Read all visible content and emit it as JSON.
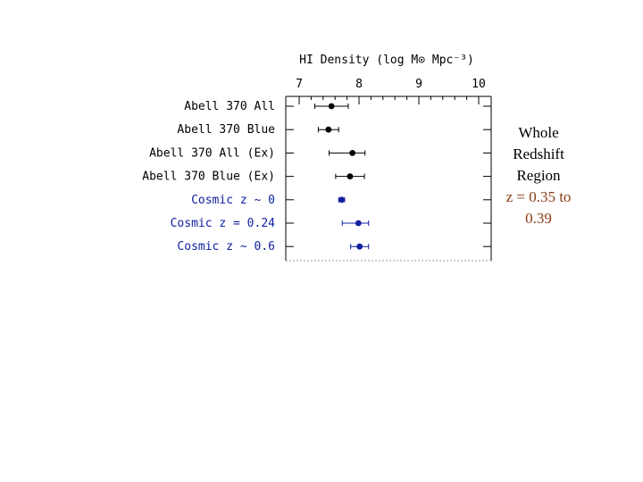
{
  "chart_data": {
    "type": "scatter",
    "title": "",
    "xlabel": "HI Density (log M⊙ Mpc⁻³)",
    "ylabel": "",
    "xlim": [
      7,
      10
    ],
    "xticks": [
      "7",
      "8",
      "9",
      "10"
    ],
    "grid": false,
    "categories": [
      "Abell 370 All",
      "Abell 370 Blue",
      "Abell 370 All (Ex)",
      "Abell 370 Blue (Ex)",
      "Cosmic z ~ 0",
      "Cosmic z = 0.24",
      "Cosmic z ~ 0.6"
    ],
    "values": [
      7.54,
      7.49,
      7.89,
      7.85,
      7.71,
      7.99,
      8.01
    ],
    "err_low": [
      0.28,
      0.17,
      0.39,
      0.24,
      0.05,
      0.27,
      0.15
    ],
    "err_high": [
      0.28,
      0.17,
      0.21,
      0.24,
      0.05,
      0.17,
      0.15
    ],
    "colors": [
      "#000000",
      "#000000",
      "#000000",
      "#000000",
      "#1020a0",
      "#1020a0",
      "#1020a0"
    ]
  },
  "side_note": {
    "line1": "Whole",
    "line2": "Redshift",
    "line3": "Region",
    "line4": "z = 0.35 to",
    "line5": "0.39"
  }
}
